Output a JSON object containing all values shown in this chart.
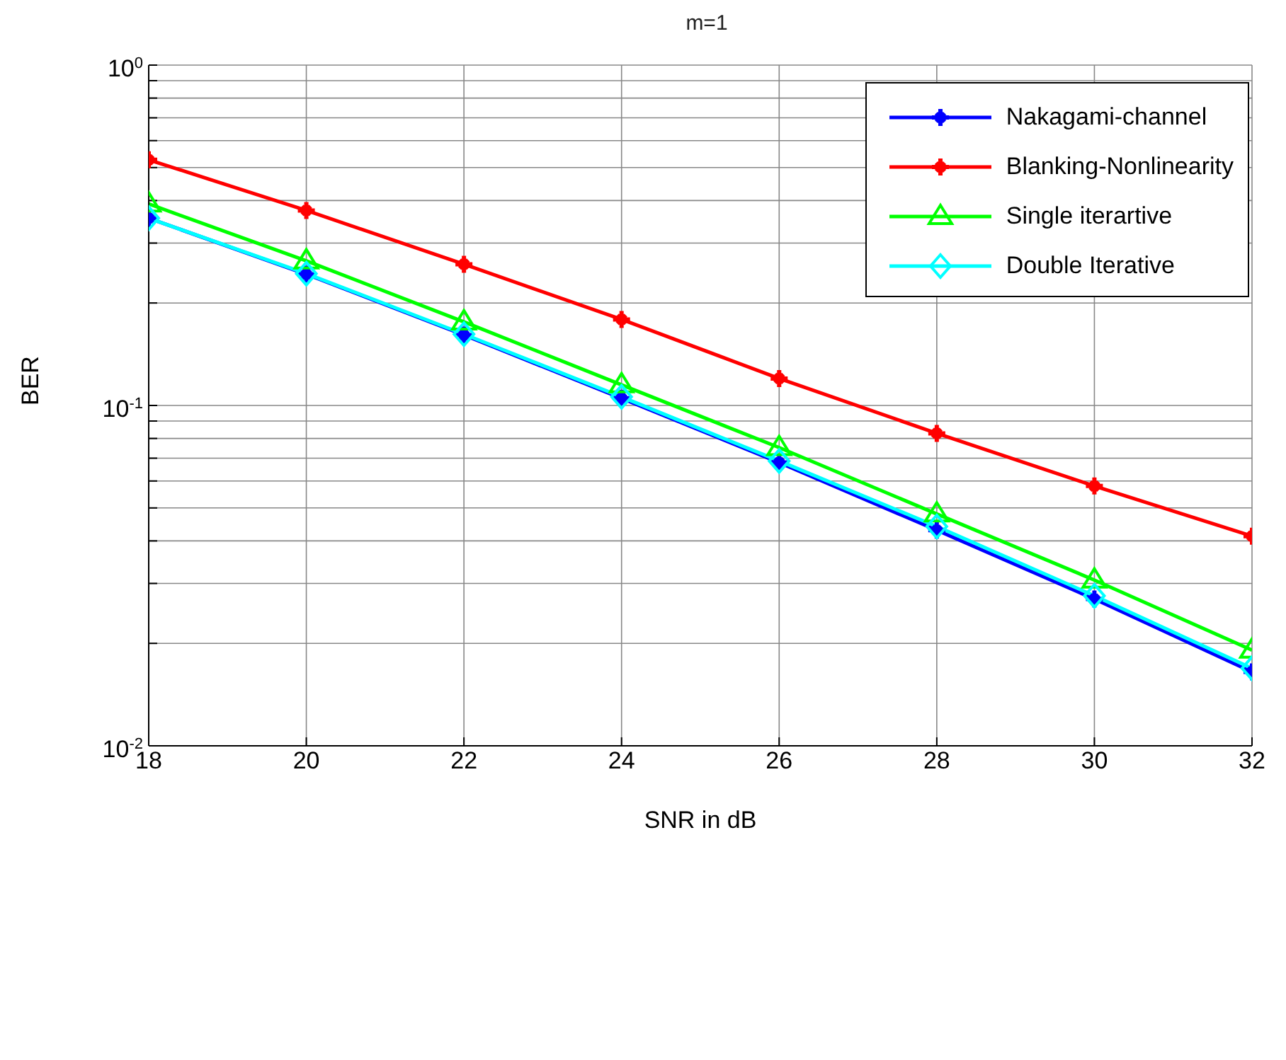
{
  "chart_data": {
    "type": "line",
    "title": "m=1",
    "xlabel": "SNR in dB",
    "ylabel": "BER",
    "x": [
      18,
      20,
      22,
      24,
      26,
      28,
      30,
      32
    ],
    "series": [
      {
        "name": "Nakagami-channel",
        "color": "#0000ff",
        "marker": "cross",
        "values": [
          0.355,
          0.243,
          0.161,
          0.105,
          0.068,
          0.043,
          0.027,
          0.0165
        ]
      },
      {
        "name": "Blanking-Nonlinearity",
        "color": "#ff0000",
        "marker": "cross",
        "values": [
          0.527,
          0.374,
          0.26,
          0.179,
          0.12,
          0.0828,
          0.058,
          0.0413
        ]
      },
      {
        "name": "Single iterartive",
        "color": "#00ff00",
        "marker": "triangle",
        "values": [
          0.391,
          0.266,
          0.176,
          0.115,
          0.0752,
          0.048,
          0.0307,
          0.0191
        ]
      },
      {
        "name": "Double Iterative",
        "color": "#00ffff",
        "marker": "diamond",
        "values": [
          0.355,
          0.244,
          0.162,
          0.106,
          0.0687,
          0.0441,
          0.0276,
          0.0169
        ]
      }
    ],
    "xlim": [
      18,
      32
    ],
    "xticks": [
      18,
      20,
      22,
      24,
      26,
      28,
      30,
      32
    ],
    "ylim": [
      0.01,
      1
    ],
    "yticks": [
      {
        "value": 0.01,
        "label": "10$^{-2}$"
      },
      {
        "value": 0.02,
        "label": null
      },
      {
        "value": 0.03,
        "label": null
      },
      {
        "value": 0.04,
        "label": null
      },
      {
        "value": 0.05,
        "label": null
      },
      {
        "value": 0.06,
        "label": null
      },
      {
        "value": 0.07,
        "label": null
      },
      {
        "value": 0.08,
        "label": null
      },
      {
        "value": 0.09,
        "label": null
      },
      {
        "value": 0.1,
        "label": "10$^{-1}$"
      },
      {
        "value": 0.2,
        "label": null
      },
      {
        "value": 0.3,
        "label": null
      },
      {
        "value": 0.4,
        "label": null
      },
      {
        "value": 0.5,
        "label": null
      },
      {
        "value": 0.6,
        "label": null
      },
      {
        "value": 0.7,
        "label": null
      },
      {
        "value": 0.8,
        "label": null
      },
      {
        "value": 0.9,
        "label": null
      },
      {
        "value": 1,
        "label": "10$^{0}$"
      }
    ],
    "log": true,
    "grid": true,
    "legend": "top right",
    "line_style": "solid"
  }
}
